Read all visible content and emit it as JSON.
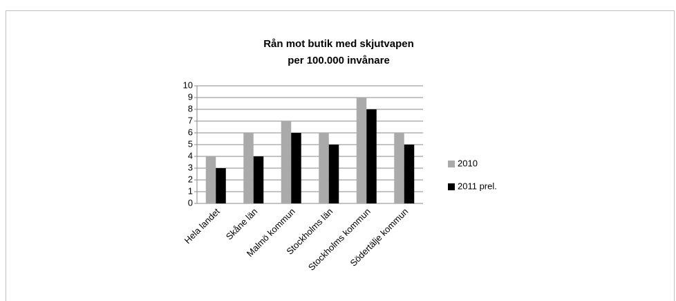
{
  "chart_data": {
    "type": "bar",
    "title": [
      "Rån mot butik med skjutvapen",
      "per 100.000 invånare"
    ],
    "categories": [
      "Hela landet",
      "Skåne län",
      "Malmö kommun",
      "Stockholms län",
      "Stockholms kommun",
      "Södertälje kommun"
    ],
    "series": [
      {
        "name": "2010",
        "color": "#aaaaaa",
        "values": [
          4,
          6,
          7,
          6,
          9,
          6
        ]
      },
      {
        "name": "2011 prel.",
        "color": "#000000",
        "values": [
          3,
          4,
          6,
          5,
          8,
          5
        ]
      }
    ],
    "ylim": [
      0,
      10
    ],
    "yticks": [
      0,
      1,
      2,
      3,
      4,
      5,
      6,
      7,
      8,
      9,
      10
    ],
    "grid": true,
    "legend": "right"
  }
}
